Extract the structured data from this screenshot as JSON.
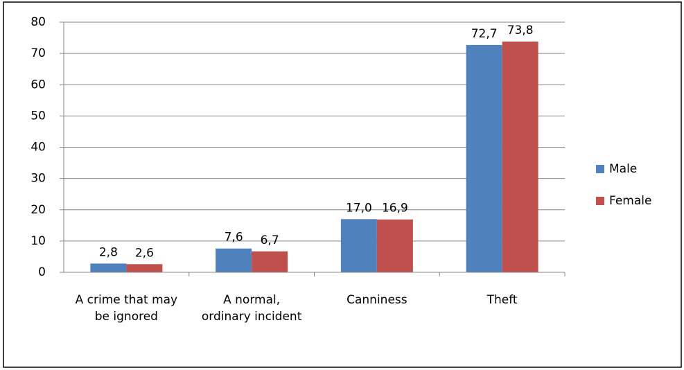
{
  "chart_data": {
    "type": "bar",
    "categories": [
      "A crime that may be ignored",
      "A normal, ordinary incident",
      "Canniness",
      "Theft"
    ],
    "series": [
      {
        "name": "Male",
        "color": "#4f81bd",
        "values": [
          2.8,
          7.6,
          17.0,
          72.7
        ],
        "value_labels": [
          "2,8",
          "7,6",
          "17,0",
          "72,7"
        ]
      },
      {
        "name": "Female",
        "color": "#c0504d",
        "values": [
          2.6,
          6.7,
          16.9,
          73.8
        ],
        "value_labels": [
          "2,6",
          "6,7",
          "16,9",
          "73,8"
        ]
      }
    ],
    "ylim": [
      0,
      80
    ],
    "yticks": [
      0,
      10,
      20,
      30,
      40,
      50,
      60,
      70,
      80
    ],
    "grid": true,
    "legend": "right"
  }
}
